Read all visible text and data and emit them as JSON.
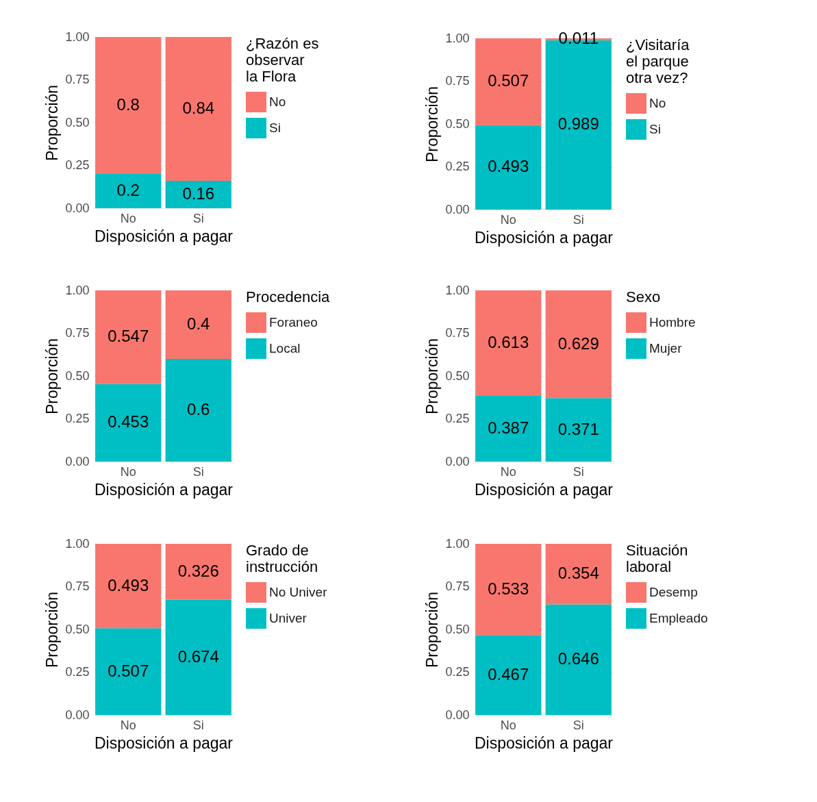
{
  "chart_data": [
    {
      "type": "bar",
      "stacked": true,
      "categories": [
        "No",
        "Si"
      ],
      "xlabel": "Disposición a pagar",
      "ylabel": "Proporción",
      "legend_title": "¿Razón es observar la Flora",
      "ylim": [
        0,
        1
      ],
      "yticks": [
        {
          "value": 0,
          "label": "0.00"
        },
        {
          "value": 0.25,
          "label": "0.25"
        },
        {
          "value": 0.5,
          "label": "0.50"
        },
        {
          "value": 0.75,
          "label": "0.75"
        },
        {
          "value": 1,
          "label": "1.00"
        }
      ],
      "grid": true,
      "legend": "right",
      "data_labels": true,
      "series": [
        {
          "name": "Si",
          "color": "#00bfc4",
          "values": [
            0.2,
            0.16
          ]
        },
        {
          "name": "No",
          "color": "#f8766d",
          "values": [
            0.8,
            0.84
          ]
        }
      ]
    },
    {
      "type": "bar",
      "stacked": true,
      "categories": [
        "No",
        "Si"
      ],
      "xlabel": "Disposición a pagar",
      "ylabel": "Proporción",
      "legend_title": "¿Visitaría el parque otra vez?",
      "ylim": [
        0,
        1
      ],
      "yticks": [
        {
          "value": 0,
          "label": "0.00"
        },
        {
          "value": 0.25,
          "label": "0.25"
        },
        {
          "value": 0.5,
          "label": "0.50"
        },
        {
          "value": 0.75,
          "label": "0.75"
        },
        {
          "value": 1,
          "label": "1.00"
        }
      ],
      "grid": true,
      "legend": "right",
      "data_labels": true,
      "series": [
        {
          "name": "Si",
          "color": "#00bfc4",
          "values": [
            0.493,
            0.989
          ]
        },
        {
          "name": "No",
          "color": "#f8766d",
          "values": [
            0.507,
            0.011
          ]
        }
      ]
    },
    {
      "type": "bar",
      "stacked": true,
      "categories": [
        "No",
        "Si"
      ],
      "xlabel": "Disposición a pagar",
      "ylabel": "Proporción",
      "legend_title": "Procedencia",
      "ylim": [
        0,
        1
      ],
      "yticks": [
        {
          "value": 0,
          "label": "0.00"
        },
        {
          "value": 0.25,
          "label": "0.25"
        },
        {
          "value": 0.5,
          "label": "0.50"
        },
        {
          "value": 0.75,
          "label": "0.75"
        },
        {
          "value": 1,
          "label": "1.00"
        }
      ],
      "grid": true,
      "legend": "right",
      "data_labels": true,
      "series": [
        {
          "name": "Local",
          "color": "#00bfc4",
          "values": [
            0.453,
            0.6
          ]
        },
        {
          "name": "Foraneo",
          "color": "#f8766d",
          "values": [
            0.547,
            0.4
          ]
        }
      ]
    },
    {
      "type": "bar",
      "stacked": true,
      "categories": [
        "No",
        "Si"
      ],
      "xlabel": "Disposición a pagar",
      "ylabel": "Proporción",
      "legend_title": "Sexo",
      "ylim": [
        0,
        1
      ],
      "yticks": [
        {
          "value": 0,
          "label": "0.00"
        },
        {
          "value": 0.25,
          "label": "0.25"
        },
        {
          "value": 0.5,
          "label": "0.50"
        },
        {
          "value": 0.75,
          "label": "0.75"
        },
        {
          "value": 1,
          "label": "1.00"
        }
      ],
      "grid": true,
      "legend": "right",
      "data_labels": true,
      "series": [
        {
          "name": "Mujer",
          "color": "#00bfc4",
          "values": [
            0.387,
            0.371
          ]
        },
        {
          "name": "Hombre",
          "color": "#f8766d",
          "values": [
            0.613,
            0.629
          ]
        }
      ]
    },
    {
      "type": "bar",
      "stacked": true,
      "categories": [
        "No",
        "Si"
      ],
      "xlabel": "Disposición a pagar",
      "ylabel": "Proporción",
      "legend_title": "Grado de instrucción",
      "ylim": [
        0,
        1
      ],
      "yticks": [
        {
          "value": 0,
          "label": "0.00"
        },
        {
          "value": 0.25,
          "label": "0.25"
        },
        {
          "value": 0.5,
          "label": "0.50"
        },
        {
          "value": 0.75,
          "label": "0.75"
        },
        {
          "value": 1,
          "label": "1.00"
        }
      ],
      "grid": true,
      "legend": "right",
      "data_labels": true,
      "series": [
        {
          "name": "Univer",
          "color": "#00bfc4",
          "values": [
            0.507,
            0.674
          ]
        },
        {
          "name": "No Univer",
          "color": "#f8766d",
          "values": [
            0.493,
            0.326
          ]
        }
      ]
    },
    {
      "type": "bar",
      "stacked": true,
      "categories": [
        "No",
        "Si"
      ],
      "xlabel": "Disposición a pagar",
      "ylabel": "Proporción",
      "legend_title": "Situación laboral",
      "ylim": [
        0,
        1
      ],
      "yticks": [
        {
          "value": 0,
          "label": "0.00"
        },
        {
          "value": 0.25,
          "label": "0.25"
        },
        {
          "value": 0.5,
          "label": "0.50"
        },
        {
          "value": 0.75,
          "label": "0.75"
        },
        {
          "value": 1,
          "label": "1.00"
        }
      ],
      "grid": true,
      "legend": "right",
      "data_labels": true,
      "series": [
        {
          "name": "Empleado",
          "color": "#00bfc4",
          "values": [
            0.467,
            0.646
          ]
        },
        {
          "name": "Desemp",
          "color": "#f8766d",
          "values": [
            0.533,
            0.354
          ]
        }
      ]
    }
  ]
}
